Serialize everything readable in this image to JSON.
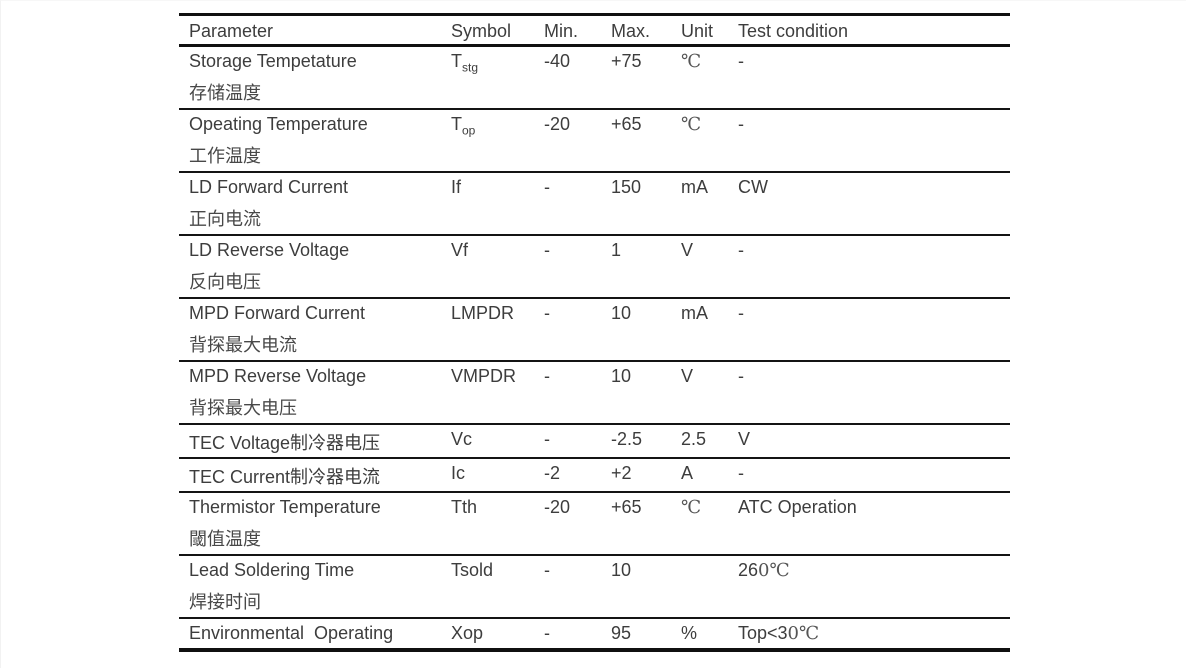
{
  "page": {
    "background": "#ffffff",
    "text_color": "#3d3d3d",
    "rule_color": "#101010"
  },
  "table": {
    "headers": [
      "Parameter",
      "Symbol",
      "Min.",
      "Max.",
      "Unit",
      "Test condition"
    ],
    "rows": [
      {
        "param_en": "Storage Tempetature",
        "param_cn": "存储温度",
        "symbol": {
          "base": "T",
          "sub": "stg"
        },
        "min": "-40",
        "max": "+75",
        "unit": "℃",
        "unit_style": "serif",
        "test_main": "-",
        "test_serif": ""
      },
      {
        "param_en": "Opeating Temperature",
        "param_cn": "工作温度",
        "symbol": {
          "base": "T",
          "sub": "op"
        },
        "min": "-20",
        "max": "+65",
        "unit": "℃",
        "unit_style": "serif",
        "test_main": "-",
        "test_serif": ""
      },
      {
        "param_en": "LD Forward Current",
        "param_cn": "正向电流",
        "symbol": {
          "base": "If",
          "sub": ""
        },
        "min": "-",
        "max": "150",
        "unit": "mA",
        "unit_style": "sans",
        "test_main": "CW",
        "test_serif": ""
      },
      {
        "param_en": "LD Reverse Voltage",
        "param_cn": "反向电压",
        "symbol": {
          "base": "Vf",
          "sub": ""
        },
        "min": "-",
        "max": "1",
        "unit": "V",
        "unit_style": "sans",
        "test_main": "-",
        "test_serif": ""
      },
      {
        "param_en": "MPD Forward Current",
        "param_cn": "背探最大电流",
        "symbol": {
          "base": "LMPDR",
          "sub": ""
        },
        "min": "-",
        "max": "10",
        "unit": "mA",
        "unit_style": "sans",
        "test_main": "-",
        "test_serif": ""
      },
      {
        "param_en": "MPD Reverse Voltage",
        "param_cn": "背探最大电压",
        "symbol": {
          "base": "VMPDR",
          "sub": ""
        },
        "min": "-",
        "max": "10",
        "unit": "V",
        "unit_style": "sans",
        "test_main": "-",
        "test_serif": ""
      },
      {
        "param_en": "TEC Voltage制冷器电压",
        "param_cn": "",
        "symbol": {
          "base": "Vc",
          "sub": ""
        },
        "min": "-",
        "max": "-2.5",
        "unit": "2.5",
        "unit_style": "sans",
        "test_main": "V",
        "test_serif": ""
      },
      {
        "param_en": "TEC Current制冷器电流",
        "param_cn": "",
        "symbol": {
          "base": "Ic",
          "sub": ""
        },
        "min": "-2",
        "max": "+2",
        "unit": "A",
        "unit_style": "sans",
        "test_main": "-",
        "test_serif": ""
      },
      {
        "param_en": "Thermistor Temperature",
        "param_cn": "閾值温度",
        "symbol": {
          "base": "Tth",
          "sub": ""
        },
        "min": "-20",
        "max": "+65",
        "unit": "℃",
        "unit_style": "serif",
        "test_main": "ATC Operation",
        "test_serif": ""
      },
      {
        "param_en": "Lead Soldering Time",
        "param_cn": "焊接时间",
        "symbol": {
          "base": "Tsold",
          "sub": ""
        },
        "min": "-",
        "max": "10",
        "unit": "",
        "unit_style": "sans",
        "test_main": "26",
        "test_serif": "0℃"
      },
      {
        "param_en": "Environmental  Operating",
        "param_cn": "",
        "symbol": {
          "base": "Xop",
          "sub": ""
        },
        "min": "-",
        "max": "95",
        "unit": "%",
        "unit_style": "sans",
        "test_main": "Top<3",
        "test_serif": "0℃"
      }
    ]
  }
}
